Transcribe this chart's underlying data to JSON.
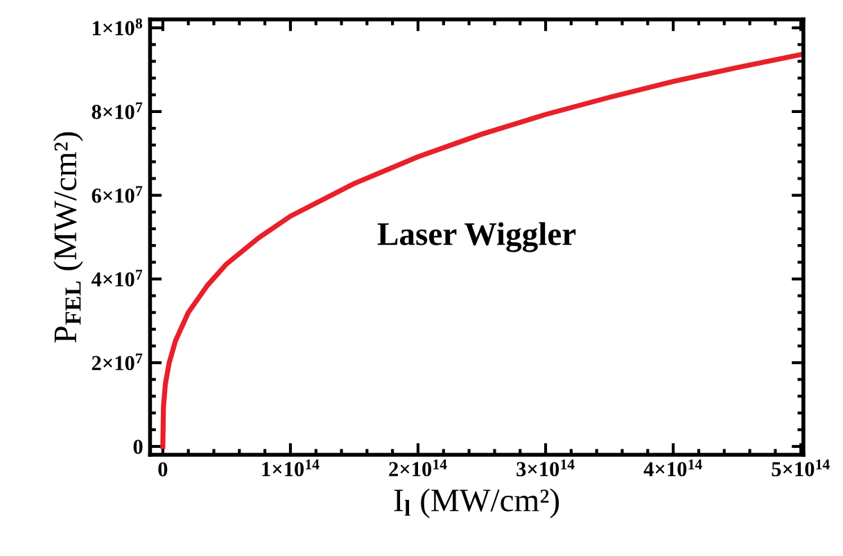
{
  "chart_data": {
    "type": "line",
    "xlabel": "I$_{l}$ (MW/cm²)",
    "ylabel": "P$_{FEL}$ (MW/cm²)",
    "annotations": [
      "Laser Wiggler"
    ],
    "xlim": [
      -10000000000000.0,
      502000000000000.0
    ],
    "ylim": [
      -2000000.0,
      102000000.0
    ],
    "xticks": [
      0,
      {
        "value": 100000000000000.0,
        "label": "1×10$^{14}$"
      },
      {
        "value": 200000000000000.0,
        "label": "2×10$^{14}$"
      },
      {
        "value": 300000000000000.0,
        "label": "3×10$^{14}$"
      },
      {
        "value": 400000000000000.0,
        "label": "4×10$^{14}$"
      },
      {
        "value": 500000000000000.0,
        "label": "5×10$^{14}$"
      }
    ],
    "yticks": [
      0,
      {
        "value": 20000000.0,
        "label": "2×10$^{7}$"
      },
      {
        "value": 40000000.0,
        "label": "4×10$^{7}$"
      },
      {
        "value": 60000000.0,
        "label": "6×10$^{7}$"
      },
      {
        "value": 80000000.0,
        "label": "8×10$^{7}$"
      },
      {
        "value": 100000000.0,
        "label": "1×10$^{8}$"
      }
    ],
    "grid": false,
    "legend": false,
    "marker": "none",
    "line_style": "solid",
    "series": [
      {
        "color": "#e8202a",
        "x": [
          0,
          500000000000.0,
          2000000000000.0,
          5000000000000.0,
          10000000000000.0,
          20000000000000.0,
          35000000000000.0,
          50000000000000.0,
          75000000000000.0,
          100000000000000.0,
          150000000000000.0,
          200000000000000.0,
          250000000000000.0,
          300000000000000.0,
          350000000000000.0,
          400000000000000.0,
          450000000000000.0,
          500000000000000.0,
          502000000000000.0
        ],
        "values": [
          0,
          9400000.0,
          14900000.0,
          20000000.0,
          25300000.0,
          32000000.0,
          38500000.0,
          43600000.0,
          49800000.0,
          55000000.0,
          62800000.0,
          69200000.0,
          74600000.0,
          79300000.0,
          83400000.0,
          87200000.0,
          90500000.0,
          93600000.0,
          93700000.0
        ]
      }
    ]
  }
}
